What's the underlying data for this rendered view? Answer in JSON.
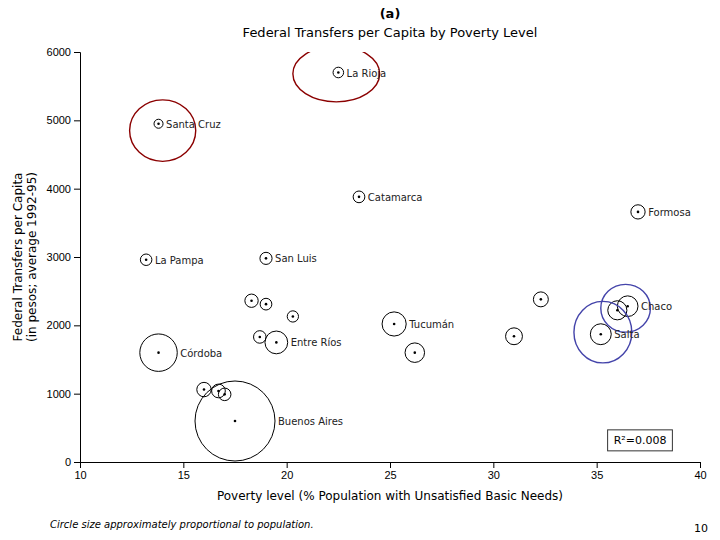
{
  "chart_data": {
    "type": "scatter",
    "title": "(a)",
    "subtitle": "Federal Transfers per Capita by Poverty Level",
    "x_label": "Poverty level (% Population with Unsatisfied Basic Needs)",
    "y_label": "Federal Transfers per Capita\n(in pesos; average 1992-95)",
    "footnote": "Circle size approximately proportional to population.",
    "page_number": "10",
    "annotations": [
      "R²=0.008"
    ],
    "xlim": [
      10,
      40
    ],
    "ylim": [
      0,
      6000
    ],
    "xticks": [
      10,
      15,
      20,
      25,
      30,
      35,
      40
    ],
    "yticks": [
      0,
      1000,
      2000,
      3000,
      4000,
      5000,
      6000
    ],
    "grid": false,
    "series": [
      {
        "color": "black",
        "x": [
          22.5,
          13.8,
          23.5,
          37.0,
          13.2,
          19.0,
          36.5,
          35.2,
          25.2,
          13.8,
          19.5,
          17.5,
          18.3,
          19.0,
          20.3,
          18.7,
          32.3,
          31.0,
          36.0,
          26.2,
          16.0,
          16.7,
          17.0
        ],
        "values": [
          5700,
          4950,
          3880,
          3660,
          2960,
          2980,
          2280,
          1870,
          2020,
          1600,
          1750,
          600,
          2360,
          2310,
          2130,
          1830,
          2380,
          1840,
          2220,
          1600,
          1060,
          1040,
          990
        ],
        "size": [
          220000,
          160000,
          270000,
          400000,
          260000,
          290000,
          840000,
          860000,
          1150000,
          2760000,
          1020000,
          12600000,
          350000,
          270000,
          250000,
          310000,
          440000,
          560000,
          720000,
          750000,
          410000,
          370000,
          310000
        ],
        "labels": [
          "La Rioja",
          "Santa Cruz",
          "Catamarca",
          "Formosa",
          "La Pampa",
          "San Luis",
          "Chaco",
          "Salta",
          "Tucumán",
          "Córdoba",
          "Entre Ríos",
          "Buenos Aires",
          null,
          null,
          null,
          null,
          null,
          null,
          null,
          null,
          null,
          null,
          null
        ]
      }
    ],
    "ellipses": [
      {
        "cx": 22.4,
        "cy": 5680,
        "w": 4.2,
        "h": 820,
        "color": "#8B0000"
      },
      {
        "cx": 14.0,
        "cy": 4850,
        "w": 3.2,
        "h": 900,
        "color": "#8B0000"
      },
      {
        "cx": 35.3,
        "cy": 1900,
        "w": 2.8,
        "h": 900,
        "color": "#4444AA"
      },
      {
        "cx": 36.4,
        "cy": 2250,
        "w": 2.4,
        "h": 700,
        "color": "#4444AA"
      }
    ]
  }
}
